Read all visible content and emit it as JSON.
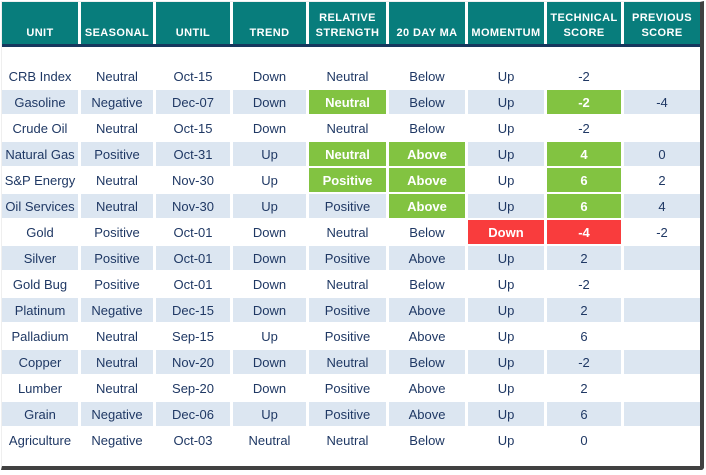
{
  "title": "Commodity technical score table",
  "colors": {
    "header_teal": "#087d7c",
    "header_divider_navy": "#17375e",
    "body_text_navy": "#1f3864",
    "row_stripe_blue": "#dce6f1",
    "highlight_green": "#82c341",
    "highlight_red": "#f93c3d",
    "frame_shadow_gray": "#414141"
  },
  "chart_data": {
    "type": "table",
    "columns": [
      "UNIT",
      "SEASONAL",
      "UNTIL",
      "TREND",
      "RELATIVE STRENGTH",
      "20 DAY MA",
      "MOMENTUM",
      "TECHNICAL SCORE",
      "PREVIOUS SCORE"
    ],
    "rows": [
      {
        "cells": [
          "CRB Index",
          "Neutral",
          "Oct-15",
          "Down",
          "Neutral",
          "Below",
          "Up",
          "-2",
          ""
        ],
        "hl": {}
      },
      {
        "cells": [
          "Gasoline",
          "Negative",
          "Dec-07",
          "Down",
          "Neutral",
          "Below",
          "Up",
          "-2",
          "-4"
        ],
        "hl": {
          "4": "green",
          "7": "green"
        }
      },
      {
        "cells": [
          "Crude Oil",
          "Neutral",
          "Oct-15",
          "Down",
          "Neutral",
          "Below",
          "Up",
          "-2",
          ""
        ],
        "hl": {}
      },
      {
        "cells": [
          "Natural Gas",
          "Positive",
          "Oct-31",
          "Up",
          "Neutral",
          "Above",
          "Up",
          "4",
          "0"
        ],
        "hl": {
          "4": "green",
          "5": "green",
          "7": "green"
        }
      },
      {
        "cells": [
          "S&P Energy",
          "Neutral",
          "Nov-30",
          "Up",
          "Positive",
          "Above",
          "Up",
          "6",
          "2"
        ],
        "hl": {
          "4": "green",
          "5": "green",
          "7": "green"
        }
      },
      {
        "cells": [
          "Oil Services",
          "Neutral",
          "Nov-30",
          "Up",
          "Positive",
          "Above",
          "Up",
          "6",
          "4"
        ],
        "hl": {
          "5": "green",
          "7": "green"
        }
      },
      {
        "cells": [
          "Gold",
          "Positive",
          "Oct-01",
          "Down",
          "Neutral",
          "Below",
          "Down",
          "-4",
          "-2"
        ],
        "hl": {
          "6": "red",
          "7": "red"
        }
      },
      {
        "cells": [
          "Silver",
          "Positive",
          "Oct-01",
          "Down",
          "Positive",
          "Above",
          "Up",
          "2",
          ""
        ],
        "hl": {}
      },
      {
        "cells": [
          "Gold Bug",
          "Positive",
          "Oct-01",
          "Down",
          "Neutral",
          "Below",
          "Up",
          "-2",
          ""
        ],
        "hl": {}
      },
      {
        "cells": [
          "Platinum",
          "Negative",
          "Dec-15",
          "Down",
          "Positive",
          "Above",
          "Up",
          "2",
          ""
        ],
        "hl": {}
      },
      {
        "cells": [
          "Palladium",
          "Neutral",
          "Sep-15",
          "Up",
          "Positive",
          "Above",
          "Up",
          "6",
          ""
        ],
        "hl": {}
      },
      {
        "cells": [
          "Copper",
          "Neutral",
          "Nov-20",
          "Down",
          "Neutral",
          "Below",
          "Up",
          "-2",
          ""
        ],
        "hl": {}
      },
      {
        "cells": [
          "Lumber",
          "Neutral",
          "Sep-20",
          "Down",
          "Positive",
          "Above",
          "Up",
          "2",
          ""
        ],
        "hl": {}
      },
      {
        "cells": [
          "Grain",
          "Negative",
          "Dec-06",
          "Up",
          "Positive",
          "Above",
          "Up",
          "6",
          ""
        ],
        "hl": {}
      },
      {
        "cells": [
          "Agriculture",
          "Negative",
          "Oct-03",
          "Neutral",
          "Neutral",
          "Below",
          "Up",
          "0",
          ""
        ],
        "hl": {}
      }
    ],
    "layout": {
      "row_striping": "alternating white and light blue starting with white",
      "legend": "green = bullish highlight, red = bearish highlight"
    }
  }
}
